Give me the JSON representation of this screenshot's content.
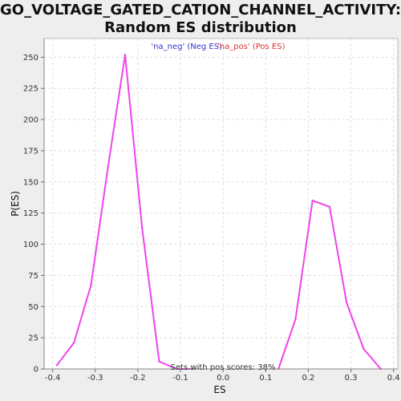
{
  "title_line1": "GO_VOLTAGE_GATED_CATION_CHANNEL_ACTIVITY:",
  "title_line2": "Random ES distribution",
  "colors": {
    "line": "#ee44ee",
    "neg": "#3333cc",
    "pos": "#dd3333",
    "grid": "#dddddd",
    "plot_bg": "#ffffff"
  },
  "chart_data": {
    "type": "line",
    "xlabel": "ES",
    "ylabel": "P(ES)",
    "xlim": [
      -0.42,
      0.41
    ],
    "ylim": [
      0,
      265
    ],
    "x_ticks": [
      "-0.4",
      "-0.3",
      "-0.2",
      "-0.1",
      "0.0",
      "0.1",
      "0.2",
      "0.3",
      "0.4"
    ],
    "y_ticks": [
      "0",
      "25",
      "50",
      "75",
      "100",
      "125",
      "150",
      "175",
      "200",
      "225",
      "250"
    ],
    "grid": true,
    "legend": {
      "placement": "top-center",
      "entries": [
        "'na_neg' (Neg ES)",
        "'na_pos' (Pos ES)"
      ]
    },
    "annotation": "Sets with pos scores: 38%",
    "series": [
      {
        "x": [
          -0.39,
          -0.35,
          -0.31,
          -0.27,
          -0.23,
          -0.19,
          -0.15,
          -0.11,
          -0.07
        ],
        "y": [
          3,
          21,
          67,
          162,
          252,
          113,
          6,
          0,
          0
        ]
      },
      {
        "x": [
          0.13,
          0.17,
          0.21,
          0.25,
          0.29,
          0.33,
          0.37
        ],
        "y": [
          0,
          40,
          135,
          130,
          53,
          16,
          0
        ]
      }
    ]
  }
}
